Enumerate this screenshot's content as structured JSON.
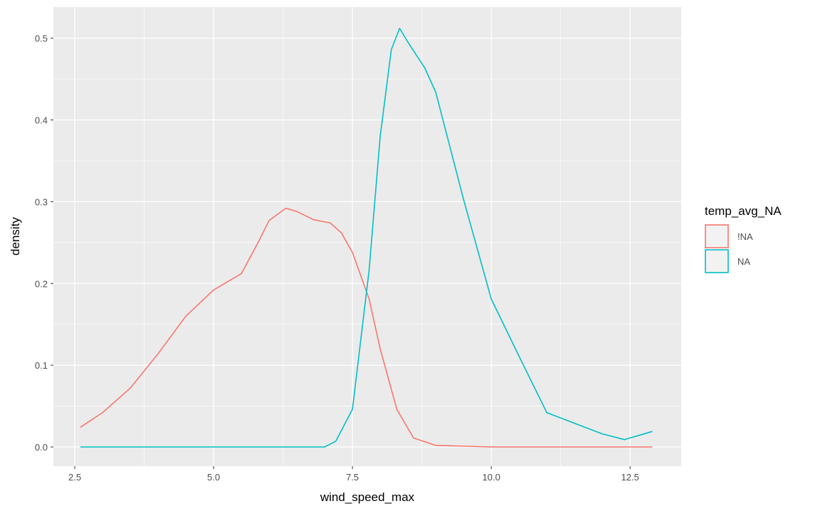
{
  "chart_data": {
    "type": "line",
    "x_label": "wind_speed_max",
    "y_label": "density",
    "legend_title": "temp_avg_NA",
    "legend_position": "right",
    "grid": true,
    "xlim": [
      2.115,
      13.42
    ],
    "ylim": [
      -0.0235,
      0.538
    ],
    "xticks": [
      {
        "value": 2.5,
        "label": "2.5"
      },
      {
        "value": 5,
        "label": "5.0"
      },
      {
        "value": 7.5,
        "label": "7.5"
      },
      {
        "value": 10,
        "label": "10.0"
      },
      {
        "value": 12.5,
        "label": "12.5"
      }
    ],
    "yticks": [
      {
        "value": 0,
        "label": "0.0"
      },
      0.1,
      0.2,
      0.3,
      0.4,
      0.5
    ],
    "series": [
      {
        "name": "!NA",
        "color": "#F8766D",
        "x": [
          2.6,
          3.0,
          3.5,
          4.0,
          4.5,
          5.0,
          5.5,
          5.8,
          6.0,
          6.3,
          6.5,
          6.8,
          7.1,
          7.3,
          7.5,
          7.8,
          8.0,
          8.3,
          8.6,
          9.0,
          10.0,
          12.9
        ],
        "values": [
          0.024,
          0.042,
          0.072,
          0.114,
          0.16,
          0.192,
          0.212,
          0.25,
          0.277,
          0.292,
          0.288,
          0.278,
          0.274,
          0.262,
          0.238,
          0.181,
          0.12,
          0.046,
          0.011,
          0.002,
          0,
          0
        ]
      },
      {
        "name": "NA",
        "color": "#00BFC4",
        "x": [
          2.6,
          7.0,
          7.2,
          7.5,
          7.8,
          8.0,
          8.2,
          8.35,
          8.5,
          8.8,
          9.0,
          9.5,
          10.0,
          10.5,
          11.0,
          11.5,
          12.0,
          12.4,
          12.9
        ],
        "values": [
          0,
          0,
          0.007,
          0.046,
          0.216,
          0.38,
          0.486,
          0.512,
          0.495,
          0.464,
          0.434,
          0.303,
          0.181,
          0.111,
          0.042,
          0.029,
          0.016,
          0.009,
          0.019
        ]
      }
    ]
  }
}
